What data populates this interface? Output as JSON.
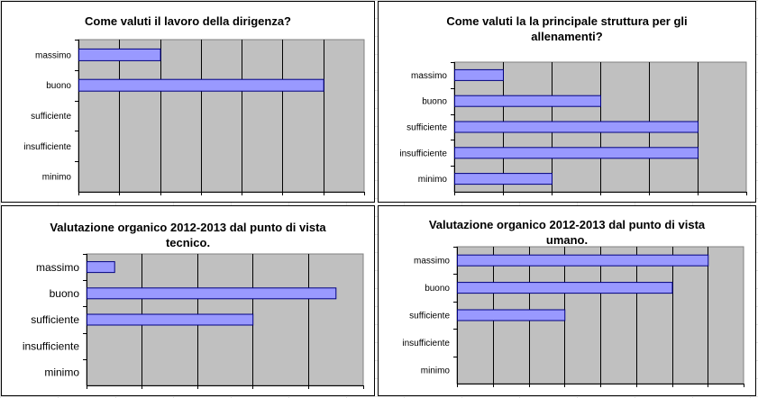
{
  "colors": {
    "plot_background": "#c0c0c0",
    "bar_fill": "#9999ff",
    "bar_stroke": "#000080",
    "grid_line": "#000000"
  },
  "chart_data": [
    {
      "type": "bar",
      "orientation": "horizontal",
      "title": "Come valuti il lavoro della dirigenza?",
      "categories": [
        "massimo",
        "buono",
        "sufficiente",
        "insufficiente",
        "minimo"
      ],
      "values": [
        2,
        6,
        0,
        0,
        0
      ],
      "xlim": [
        0,
        7
      ],
      "xlabel": "",
      "ylabel": "",
      "grid": true,
      "legend": "none"
    },
    {
      "type": "bar",
      "orientation": "horizontal",
      "title": "Come valuti la la principale struttura per gli allenamenti?",
      "categories": [
        "massimo",
        "buono",
        "sufficiente",
        "insufficiente",
        "minimo"
      ],
      "values": [
        1,
        3,
        5,
        5,
        2
      ],
      "xlim": [
        0,
        6
      ],
      "xlabel": "",
      "ylabel": "",
      "grid": true,
      "legend": "none"
    },
    {
      "type": "bar",
      "orientation": "horizontal",
      "title": "Valutazione organico 2012-2013 dal punto di vista tecnico.",
      "categories": [
        "massimo",
        "buono",
        "sufficiente",
        "insufficiente",
        "minimo"
      ],
      "values": [
        0.5,
        4.5,
        3,
        0,
        0
      ],
      "xlim": [
        0,
        5
      ],
      "xlabel": "",
      "ylabel": "",
      "grid": true,
      "legend": "none"
    },
    {
      "type": "bar",
      "orientation": "horizontal",
      "title": "Valutazione organico 2012-2013 dal punto di vista umano.",
      "categories": [
        "massimo",
        "buono",
        "sufficiente",
        "insufficiente",
        "minimo"
      ],
      "values": [
        7,
        6,
        3,
        0,
        0
      ],
      "xlim": [
        0,
        8
      ],
      "xlabel": "",
      "ylabel": "",
      "grid": true,
      "legend": "none"
    }
  ]
}
